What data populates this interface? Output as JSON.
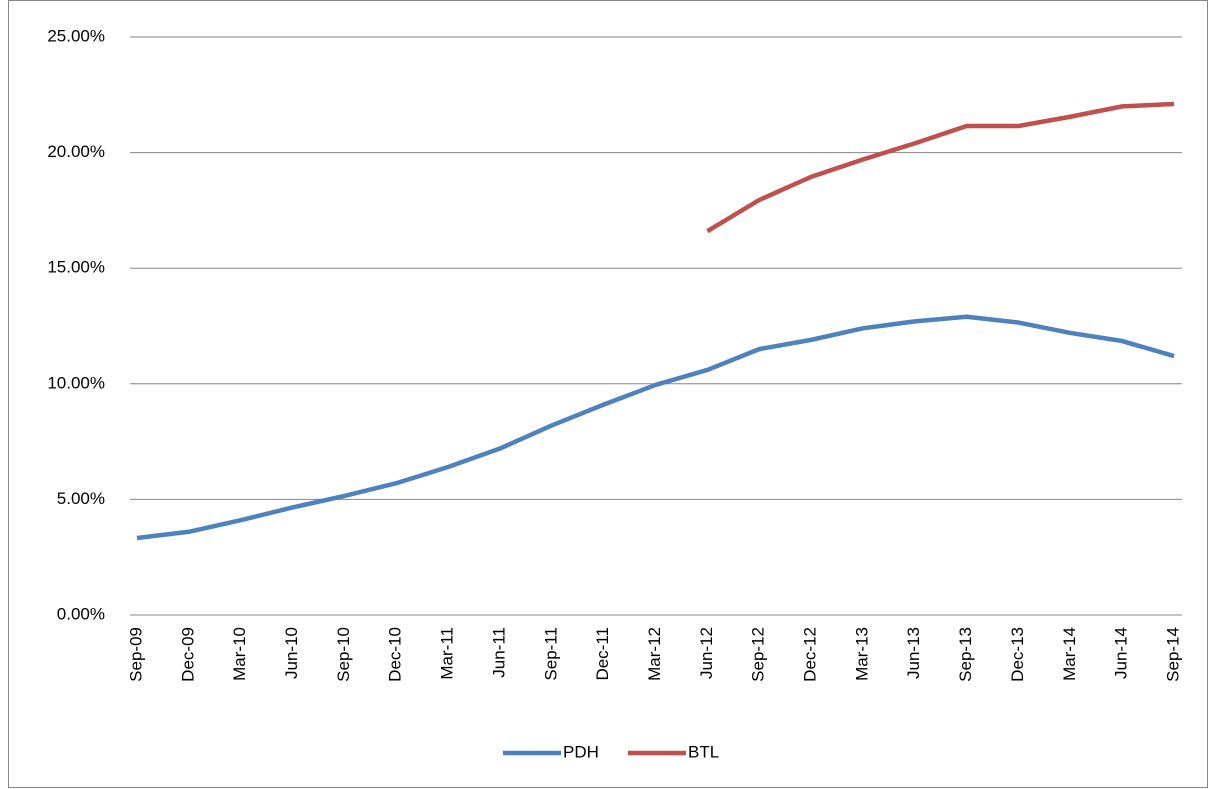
{
  "chart_data": {
    "type": "line",
    "categories": [
      "Sep-09",
      "Dec-09",
      "Mar-10",
      "Jun-10",
      "Sep-10",
      "Dec-10",
      "Mar-11",
      "Jun-11",
      "Sep-11",
      "Dec-11",
      "Mar-12",
      "Jun-12",
      "Sep-12",
      "Dec-12",
      "Mar-13",
      "Jun-13",
      "Sep-13",
      "Dec-13",
      "Mar-14",
      "Jun-14",
      "Sep-14"
    ],
    "series": [
      {
        "name": "PDH",
        "color": "#4f81bd",
        "values": [
          3.33,
          3.6,
          4.1,
          4.65,
          5.15,
          5.7,
          6.4,
          7.2,
          8.2,
          9.1,
          9.95,
          10.6,
          11.5,
          11.9,
          12.4,
          12.7,
          12.9,
          12.65,
          12.2,
          11.85,
          11.2
        ]
      },
      {
        "name": "BTL",
        "color": "#c0504d",
        "values": [
          null,
          null,
          null,
          null,
          null,
          null,
          null,
          null,
          null,
          null,
          null,
          16.6,
          17.95,
          18.95,
          19.7,
          20.4,
          21.15,
          21.15,
          21.55,
          22.0,
          22.1
        ]
      }
    ],
    "ylim": [
      0,
      25
    ],
    "yticks": [
      {
        "value": 0,
        "label": "0.00%"
      },
      {
        "value": 5,
        "label": "5.00%"
      },
      {
        "value": 10,
        "label": "10.00%"
      },
      {
        "value": 15,
        "label": "15.00%"
      },
      {
        "value": 20,
        "label": "20.00%"
      },
      {
        "value": 25,
        "label": "25.00%"
      }
    ],
    "grid": true,
    "legend": "bottom"
  }
}
